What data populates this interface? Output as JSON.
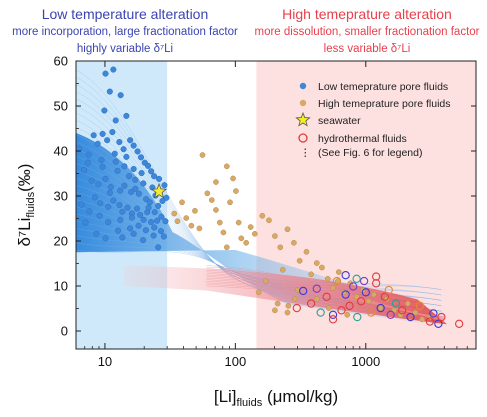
{
  "headers": {
    "left": {
      "title": "Low temperature alteration",
      "line2": "more incorporation, large fractionation factor",
      "line3": "highly variable δ⁷Li"
    },
    "right": {
      "title": "High temeprature alteration",
      "line2": "more dissolution, smaller fractionation factor",
      "line3": "less variable δ⁷Li"
    }
  },
  "axes": {
    "x_label": "[Li]",
    "x_label_sub": "fluids",
    "x_label_unit": " (μmol/kg)",
    "y_label": "δ⁷Li",
    "y_label_sub": "fluids",
    "y_label_unit": "(‰)"
  },
  "legend": {
    "items": [
      {
        "key": "low_pore",
        "label": "Low temeprature pore fluids"
      },
      {
        "key": "high_pore",
        "label": "High temeprature pore fluids"
      },
      {
        "key": "seawater",
        "label": "seawater"
      },
      {
        "key": "hydro",
        "label": "hydrothermal fluids"
      },
      {
        "key": "note",
        "label": "(See Fig. 6 for legend)"
      }
    ]
  },
  "colors": {
    "low_pore": "#3e86d8",
    "high_pore": "#d8a866",
    "seawater": "#f2ee2a",
    "hydro": "#e23a3a",
    "blue_band": "#cfe9fa",
    "red_band": "#fde0e0",
    "header_blue": "#3a44b0",
    "header_red": "#e8404c"
  },
  "chart_data": {
    "type": "scatter",
    "x_scale": "log",
    "xlim": [
      6,
      7000
    ],
    "ylim": [
      -4,
      60
    ],
    "x_ticks": [
      10,
      100,
      1000
    ],
    "y_ticks": [
      0,
      10,
      20,
      30,
      40,
      50,
      60
    ],
    "regions": [
      {
        "name": "low temperature",
        "x": [
          6,
          30
        ]
      },
      {
        "name": "high temperature",
        "x": [
          145,
          7000
        ]
      }
    ],
    "seawater": {
      "x": 26,
      "y": 31
    },
    "series": [
      {
        "name": "Low temeprature pore fluids",
        "points": [
          [
            6.3,
            40.5
          ],
          [
            7.5,
            39.2
          ],
          [
            8.2,
            43.5
          ],
          [
            8.8,
            41.6
          ],
          [
            9.6,
            43.8
          ],
          [
            10.4,
            42.4
          ],
          [
            11.4,
            44.2
          ],
          [
            13.2,
            52.4
          ],
          [
            14.6,
            47.8
          ],
          [
            14.1,
            36.6
          ],
          [
            10.1,
            57.2
          ],
          [
            11.6,
            58.1
          ],
          [
            10.9,
            53.2
          ],
          [
            12.1,
            46.8
          ],
          [
            12.9,
            42.0
          ],
          [
            15.6,
            42.4
          ],
          [
            16.6,
            41.2
          ],
          [
            17.8,
            39.9
          ],
          [
            18.9,
            38.6
          ],
          [
            20.2,
            37.4
          ],
          [
            21.4,
            36.7
          ],
          [
            22.6,
            35.5
          ],
          [
            23.8,
            34.4
          ],
          [
            19.7,
            32.8
          ],
          [
            17.1,
            33.6
          ],
          [
            15.3,
            34.4
          ],
          [
            12.5,
            35.6
          ],
          [
            10.1,
            33.8
          ],
          [
            8.9,
            32.6
          ],
          [
            7.9,
            33.4
          ],
          [
            8.4,
            29.7
          ],
          [
            9.2,
            28.4
          ],
          [
            10.6,
            27.6
          ],
          [
            11.6,
            29.0
          ],
          [
            12.9,
            28.0
          ],
          [
            13.6,
            26.5
          ],
          [
            14.9,
            27.4
          ],
          [
            16.1,
            26.1
          ],
          [
            17.6,
            27.2
          ],
          [
            18.6,
            25.8
          ],
          [
            19.8,
            24.7
          ],
          [
            21.1,
            26.4
          ],
          [
            22.6,
            24.2
          ],
          [
            23.9,
            23.0
          ],
          [
            25.1,
            24.5
          ],
          [
            26.9,
            22.2
          ],
          [
            28.3,
            21.0
          ],
          [
            24.4,
            30.1
          ],
          [
            20.7,
            29.3
          ],
          [
            18.2,
            30.5
          ],
          [
            15.9,
            30.9
          ],
          [
            13.1,
            31.2
          ],
          [
            10.9,
            30.7
          ],
          [
            7.4,
            37.4
          ],
          [
            6.9,
            35.8
          ],
          [
            9.4,
            38.0
          ],
          [
            11.9,
            39.4
          ],
          [
            13.9,
            40.4
          ],
          [
            16.6,
            36.0
          ],
          [
            19.1,
            35.1
          ],
          [
            26.0,
            33.8
          ],
          [
            27.6,
            28.9
          ],
          [
            25.6,
            27.8
          ],
          [
            22.1,
            28.6
          ],
          [
            20.6,
            22.4
          ],
          [
            18.1,
            23.4
          ],
          [
            15.6,
            22.8
          ],
          [
            12.6,
            22.3
          ],
          [
            10.6,
            24.2
          ],
          [
            9.1,
            25.6
          ],
          [
            7.6,
            26.6
          ],
          [
            8.6,
            21.6
          ],
          [
            10.1,
            20.6
          ],
          [
            13.1,
            24.7
          ],
          [
            16.1,
            25.2
          ],
          [
            21.6,
            27.4
          ],
          [
            24.1,
            26.4
          ],
          [
            27.1,
            25.4
          ],
          [
            29.1,
            24.4
          ],
          [
            28.6,
            32.4
          ],
          [
            29.6,
            29.6
          ],
          [
            23.1,
            31.9
          ],
          [
            17.1,
            31.6
          ],
          [
            14.1,
            32.3
          ],
          [
            11.1,
            32.0
          ],
          [
            9.6,
            36.5
          ],
          [
            12.1,
            37.6
          ],
          [
            14.6,
            38.7
          ],
          [
            6.6,
            28.1
          ],
          [
            7.1,
            24.1
          ],
          [
            13.6,
            20.8
          ],
          [
            16.6,
            21.6
          ],
          [
            19.6,
            20.2
          ],
          [
            23.6,
            21.2
          ],
          [
            25.6,
            18.6
          ],
          [
            9.9,
            49.0
          ]
        ]
      },
      {
        "name": "High temeprature pore fluids",
        "points": [
          [
            34,
            26.1
          ],
          [
            36,
            24.4
          ],
          [
            39,
            28.6
          ],
          [
            42,
            25.1
          ],
          [
            46,
            23.4
          ],
          [
            49,
            26.7
          ],
          [
            53,
            22.8
          ],
          [
            56,
            39.1
          ],
          [
            61,
            30.6
          ],
          [
            66,
            29.1
          ],
          [
            71,
            26.9
          ],
          [
            76,
            24.1
          ],
          [
            81,
            21.9
          ],
          [
            86,
            18.6
          ],
          [
            91,
            28.6
          ],
          [
            96,
            33.9
          ],
          [
            101,
            31.1
          ],
          [
            106,
            24.1
          ],
          [
            111,
            20.6
          ],
          [
            121,
            19.6
          ],
          [
            131,
            23.1
          ],
          [
            141,
            21.6
          ],
          [
            161,
            25.6
          ],
          [
            181,
            24.6
          ],
          [
            201,
            21.1
          ],
          [
            221,
            18.6
          ],
          [
            251,
            22.6
          ],
          [
            281,
            19.6
          ],
          [
            311,
            15.6
          ],
          [
            351,
            17.6
          ],
          [
            381,
            12.6
          ],
          [
            421,
            15.1
          ],
          [
            461,
            14.1
          ],
          [
            511,
            11.6
          ],
          [
            561,
            9.6
          ],
          [
            621,
            13.1
          ],
          [
            681,
            8.6
          ],
          [
            761,
            10.6
          ],
          [
            851,
            7.6
          ],
          [
            951,
            9.1
          ],
          [
            1051,
            6.6
          ],
          [
            1151,
            8.1
          ],
          [
            1301,
            5.1
          ],
          [
            1451,
            7.1
          ],
          [
            1651,
            4.6
          ],
          [
            1851,
            3.6
          ],
          [
            2101,
            6.1
          ],
          [
            2401,
            4.1
          ],
          [
            2701,
            2.6
          ],
          [
            3101,
            3.1
          ],
          [
            211,
            6.1
          ],
          [
            251,
            4.1
          ],
          [
            301,
            9.1
          ],
          [
            421,
            7.1
          ],
          [
            521,
            5.1
          ],
          [
            611,
            11.1
          ],
          [
            721,
            3.6
          ],
          [
            255,
            5.6
          ],
          [
            151,
            8.6
          ],
          [
            171,
            11.1
          ],
          [
            231,
            13.6
          ],
          [
            286,
            7.1
          ],
          [
            201,
            4.6
          ],
          [
            86,
            36.6
          ],
          [
            71,
            33.1
          ]
        ]
      },
      {
        "name": "hydrothermal fluids",
        "points": [
          [
            296,
            5.1
          ],
          [
            331,
            8.9
          ],
          [
            381,
            6.1
          ],
          [
            421,
            9.4
          ],
          [
            451,
            4.1
          ],
          [
            501,
            7.6
          ],
          [
            561,
            3.6
          ],
          [
            601,
            11.1
          ],
          [
            651,
            4.6
          ],
          [
            701,
            8.1
          ],
          [
            751,
            5.6
          ],
          [
            801,
            9.9
          ],
          [
            861,
            3.1
          ],
          [
            921,
            6.6
          ],
          [
            1001,
            8.6
          ],
          [
            1101,
            4.1
          ],
          [
            1201,
            10.6
          ],
          [
            1301,
            5.1
          ],
          [
            1401,
            7.6
          ],
          [
            1551,
            3.6
          ],
          [
            1701,
            6.1
          ],
          [
            1901,
            4.6
          ],
          [
            2201,
            3.1
          ],
          [
            2601,
            5.6
          ],
          [
            3101,
            2.1
          ],
          [
            3601,
            1.6
          ],
          [
            5201,
            1.6
          ],
          [
            971,
            11.1
          ],
          [
            851,
            11.6
          ],
          [
            1201,
            12.1
          ],
          [
            701,
            12.4
          ],
          [
            1501,
            9.1
          ],
          [
            561,
            2.6
          ],
          [
            3301,
            3.9
          ],
          [
            3801,
            3.1
          ]
        ]
      }
    ]
  }
}
